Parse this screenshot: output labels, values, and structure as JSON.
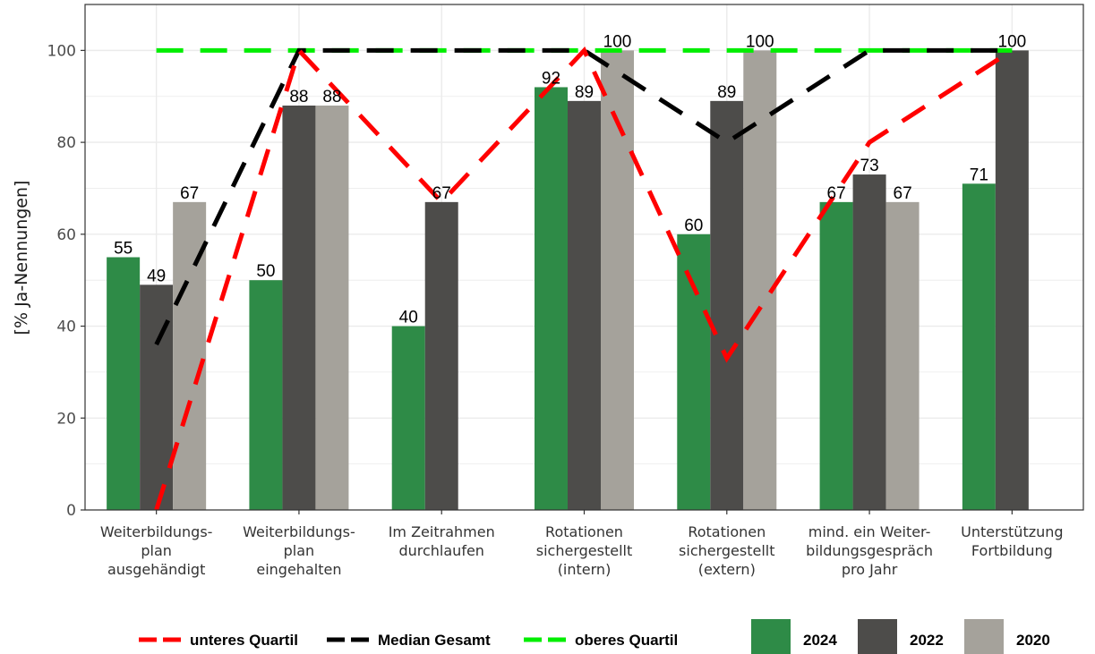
{
  "chart_data": {
    "type": "bar",
    "title": "",
    "xlabel": "",
    "ylabel": "[% Ja-Nennungen]",
    "ylim": [
      0,
      110
    ],
    "yticks": [
      0,
      20,
      40,
      60,
      80,
      100
    ],
    "grid": true,
    "legend_position": "bottom",
    "categories": [
      [
        "Weiterbildungs-",
        "plan",
        "ausgehändigt"
      ],
      [
        "Weiterbildungs-",
        "plan",
        "eingehalten"
      ],
      [
        "Im Zeitrahmen",
        "durchlaufen"
      ],
      [
        "Rotationen",
        "sichergestellt",
        "(intern)"
      ],
      [
        "Rotationen",
        "sichergestellt",
        "(extern)"
      ],
      [
        "mind. ein Weiter-",
        "bildungsgespräch",
        "pro Jahr"
      ],
      [
        "Unterstützung",
        "Fortbildung"
      ]
    ],
    "series": [
      {
        "name": "2024",
        "color": "#2e8b47",
        "values": [
          55,
          50,
          40,
          92,
          60,
          67,
          71
        ],
        "labels": [
          "55",
          "50",
          "40",
          "92",
          "60",
          "67",
          "71"
        ]
      },
      {
        "name": "2022",
        "color": "#4d4c4a",
        "values": [
          49,
          88,
          67,
          89,
          89,
          73,
          100
        ],
        "labels": [
          "49",
          "88",
          "67",
          "89",
          "89",
          "73",
          "100"
        ]
      },
      {
        "name": "2020",
        "color": "#a5a29b",
        "values": [
          67,
          88,
          null,
          100,
          100,
          67,
          null
        ],
        "labels": [
          "67",
          "88",
          "",
          "100",
          "100",
          "67",
          ""
        ]
      }
    ],
    "lines": [
      {
        "name": "unteres Quartil",
        "color": "#ff0000",
        "dash": "dashed",
        "values": [
          0,
          100,
          67,
          100,
          33,
          80,
          100
        ]
      },
      {
        "name": "Median Gesamt",
        "color": "#000000",
        "dash": "dashed",
        "values": [
          36,
          100,
          100,
          100,
          80,
          100,
          100
        ]
      },
      {
        "name": "oberes Quartil",
        "color": "#00ee00",
        "dash": "dashed",
        "values": [
          100,
          100,
          100,
          100,
          100,
          100,
          100
        ]
      }
    ],
    "legend_lines": [
      "unteres Quartil",
      "Median Gesamt",
      "oberes Quartil"
    ],
    "legend_bars": [
      "2024",
      "2022",
      "2020"
    ]
  }
}
